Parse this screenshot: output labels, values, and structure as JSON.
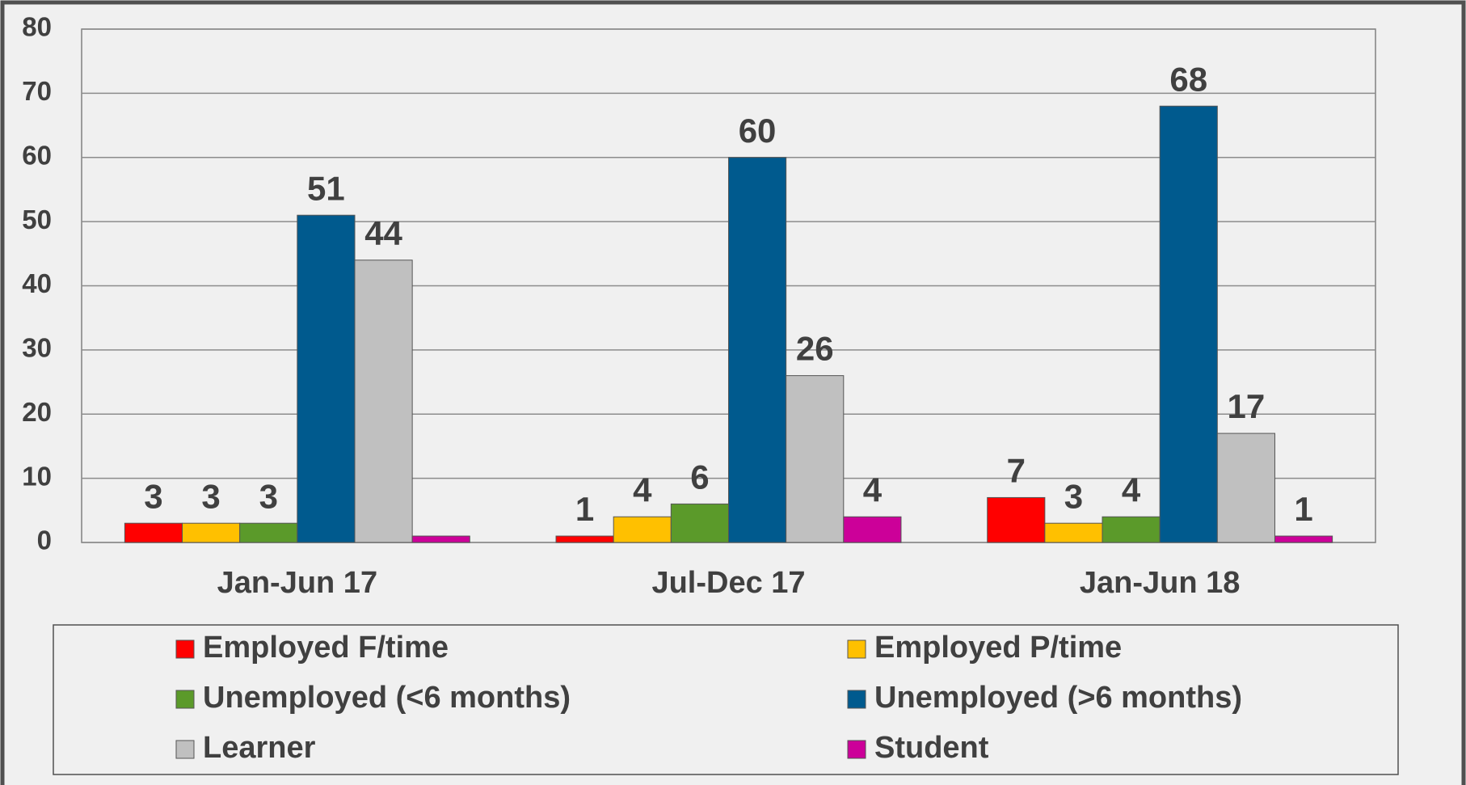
{
  "chart_data": {
    "type": "bar",
    "categories": [
      "Jan-Jun 17",
      "Jul-Dec 17",
      "Jan-Jun 18"
    ],
    "series": [
      {
        "name": "Employed F/time",
        "color": "#ff0000",
        "values": [
          3,
          1,
          7
        ]
      },
      {
        "name": "Employed P/time",
        "color": "#ffc000",
        "values": [
          3,
          4,
          3
        ]
      },
      {
        "name": "Unemployed (<6 months)",
        "color": "#5b9a2a",
        "values": [
          3,
          6,
          4
        ]
      },
      {
        "name": "Unemployed (>6 months)",
        "color": "#005a8e",
        "values": [
          51,
          60,
          68
        ]
      },
      {
        "name": "Learner",
        "color": "#c0c0c0",
        "values": [
          44,
          26,
          17
        ]
      },
      {
        "name": "Student",
        "color": "#cc0099",
        "values": [
          1,
          4,
          1
        ],
        "value_labels": [
          null,
          "4",
          "1"
        ]
      }
    ],
    "ylim": [
      0,
      80
    ],
    "yticks": [
      0,
      10,
      20,
      30,
      40,
      50,
      60,
      70,
      80
    ],
    "grid": true,
    "legend": "bottom"
  }
}
